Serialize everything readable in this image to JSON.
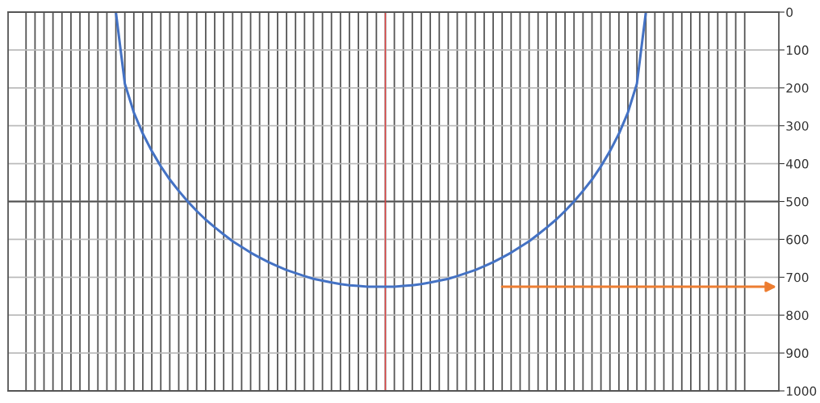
{
  "chart_data": {
    "type": "line",
    "categories": [
      null,
      null,
      null,
      null,
      null,
      null,
      null,
      null,
      null,
      null,
      null,
      null,
      null,
      null,
      null,
      null,
      null,
      null,
      null,
      null,
      null,
      null,
      null,
      null,
      null,
      null,
      null,
      null,
      null,
      null,
      null,
      null,
      null,
      null,
      null,
      null,
      null,
      null,
      null,
      null,
      null,
      null,
      null,
      null,
      null,
      null,
      null,
      null,
      null,
      null,
      null,
      null,
      null,
      null,
      null,
      null,
      null,
      null,
      null,
      null,
      null,
      null,
      null,
      null,
      null,
      null,
      null,
      null,
      null,
      null,
      null,
      null,
      null,
      null,
      null,
      null,
      null,
      null,
      null,
      null,
      null
    ],
    "series": [
      {
        "color": "#4472c4",
        "values": [
          null,
          null,
          null,
          null,
          null,
          null,
          null,
          null,
          null,
          null,
          0,
          189,
          265,
          321,
          367,
          407,
          442,
          472,
          500,
          525,
          548,
          568,
          587,
          605,
          620,
          635,
          648,
          660,
          671,
          681,
          689,
          697,
          704,
          709,
          714,
          718,
          721,
          723,
          725,
          725,
          725,
          725,
          723,
          721,
          718,
          714,
          709,
          704,
          697,
          689,
          681,
          671,
          660,
          648,
          635,
          620,
          605,
          587,
          568,
          548,
          525,
          500,
          472,
          442,
          407,
          367,
          321,
          265,
          189,
          0,
          null,
          null,
          null,
          null,
          null,
          null,
          null,
          null,
          null,
          null,
          null
        ]
      }
    ],
    "ylim": [
      1000,
      0
    ],
    "yticks": [
      0,
      100,
      200,
      300,
      400,
      500,
      600,
      700,
      800,
      900,
      1000
    ],
    "grid": true,
    "tick_labels": "y",
    "marker": "none",
    "line_style": "solid",
    "ref_lines": [
      {
        "axis": "y",
        "value": 500,
        "color": "#505050"
      }
    ]
  }
}
